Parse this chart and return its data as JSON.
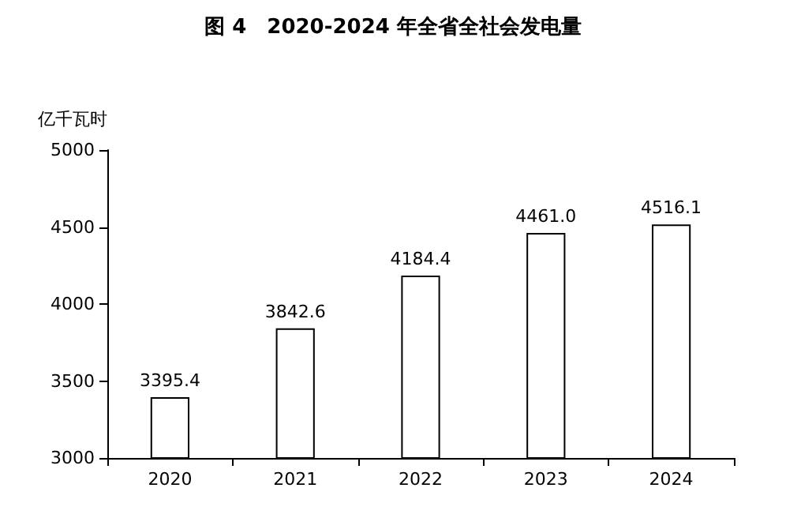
{
  "chart_data": {
    "type": "bar",
    "title": "图 4　2020-2024 年全省全社会发电量",
    "ylabel": "亿千瓦时",
    "categories": [
      "2020",
      "2021",
      "2022",
      "2023",
      "2024"
    ],
    "values": [
      3395.4,
      3842.6,
      4184.4,
      4461.0,
      4516.1
    ],
    "value_labels": [
      "3395.4",
      "3842.6",
      "4184.4",
      "4461.0",
      "4516.1"
    ],
    "color": "#ffffff",
    "ylim": [
      3000,
      5000
    ],
    "yticks": [
      3000,
      3500,
      4000,
      4500,
      5000
    ],
    "grid": false
  }
}
